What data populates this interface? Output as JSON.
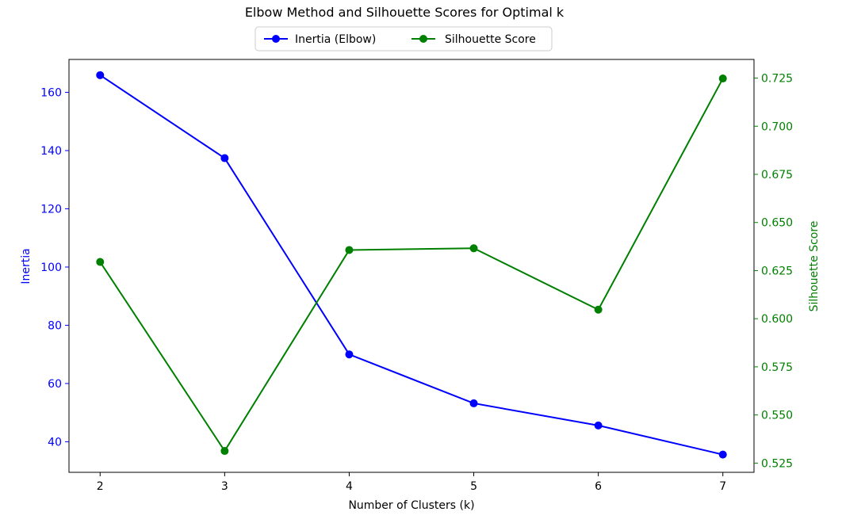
{
  "chart_data": {
    "type": "line",
    "title": "Elbow Method and Silhouette Scores for Optimal k",
    "xlabel": "Number of Clusters (k)",
    "ylabel_left": "Inertia",
    "ylabel_right": "Silhouette Score",
    "x": [
      2,
      3,
      4,
      5,
      6,
      7
    ],
    "x_ticks": [
      "2",
      "3",
      "4",
      "5",
      "6",
      "7"
    ],
    "xlim": [
      1.75,
      7.25
    ],
    "ylim_left": [
      29.5,
      171.3
    ],
    "ylim_right": [
      0.5202,
      0.7347
    ],
    "y_ticks_left": [
      40,
      60,
      80,
      100,
      120,
      140,
      160
    ],
    "y_ticks_right": [
      "0.525",
      "0.550",
      "0.575",
      "0.600",
      "0.625",
      "0.650",
      "0.675",
      "0.700",
      "0.725"
    ],
    "y_tick_values_right": [
      0.525,
      0.55,
      0.575,
      0.6,
      0.625,
      0.65,
      0.675,
      0.7,
      0.725
    ],
    "legend_position": "top-center",
    "grid": false,
    "series": [
      {
        "name": "Inertia (Elbow)",
        "axis": "left",
        "color": "#0000ff",
        "values": [
          165.9,
          137.4,
          70.0,
          53.2,
          45.6,
          35.6
        ]
      },
      {
        "name": "Silhouette Score",
        "axis": "right",
        "color": "#008000",
        "values": [
          0.6295,
          0.5313,
          0.6357,
          0.6366,
          0.6047,
          0.7248
        ]
      }
    ]
  }
}
